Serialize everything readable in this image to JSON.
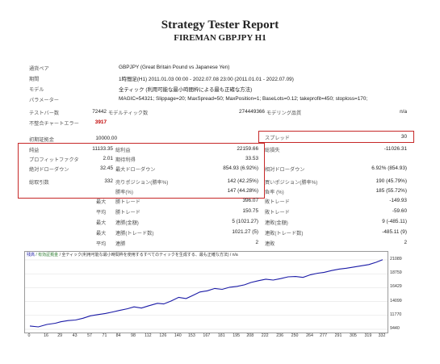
{
  "header": {
    "title": "Strategy Tester Report",
    "subtitle": "FIREMAN GBPJPY H1"
  },
  "settings": {
    "symbol_label": "通貨ペア",
    "symbol_value": "GBPJPY (Great Britain Pound vs Japanese Yen)",
    "period_label": "期間",
    "period_value": "1時間足(H1) 2011.01.03 00:00 - 2022.07.08 23:00 (2011.01.01 - 2022.07.09)",
    "model_label": "モデル",
    "model_value": "全ティック (利用可能な最小時間枠による最も正確な方法)",
    "params_label": "パラメーター",
    "params_value": "MAGIC=54321; Slippage=20; MaxSpread=50; MaxPosition=1; BaseLots=0.12; takeprofit=450; stoploss=170;"
  },
  "stats": {
    "bars_label": "テストバー数",
    "bars_value": "72442",
    "ticks_label": "モデルティック数",
    "ticks_value": "274449366",
    "quality_label": "モデリング品質",
    "quality_value": "n/a",
    "mismatch_label": "不整合チャートエラー",
    "mismatch_value": "3917",
    "deposit_label": "初期証拠金",
    "deposit_value": "10000.00",
    "spread_label": "スプレッド",
    "spread_value": "30",
    "net_label": "純益",
    "net_value": "11133.35",
    "gross_profit_label": "総利益",
    "gross_profit_value": "22159.66",
    "gross_loss_label": "総損失",
    "gross_loss_value": "-11026.31",
    "pf_label": "プロフィットファクタ",
    "pf_value": "2.01",
    "payoff_label": "期待利得",
    "payoff_value": "33.53",
    "abs_dd_label": "絶対ドローダウン",
    "abs_dd_value": "32.45",
    "max_dd_label": "最大ドローダウン",
    "max_dd_value": "854.93 (6.92%)",
    "rel_dd_label": "相対ドローダウン",
    "rel_dd_value": "6.92% (854.93)",
    "total_trades_label": "総取引数",
    "total_trades_value": "332",
    "short_label": "売りポジション(勝率%)",
    "short_value": "142 (42.25%)",
    "long_label": "買いポジション(勝率%)",
    "long_value": "190 (45.79%)",
    "win_label": "勝率(%)",
    "win_value": "147 (44.28%)",
    "loss_label": "負率 (%)",
    "loss_value": "185 (55.72%)",
    "largest_prefix": "最大",
    "average_prefix": "平均",
    "largest_win_label": "勝トレード",
    "largest_win_value": "396.07",
    "largest_loss_label": "敗トレード",
    "largest_loss_value": "-149.93",
    "avg_win_label": "勝トレード",
    "avg_win_value": "150.75",
    "avg_loss_label": "敗トレード",
    "avg_loss_value": "-59.60",
    "max_cons_wins_label": "連勝(金額)",
    "max_cons_wins_value": "5 (1021.27)",
    "max_cons_losses_label": "連敗(金額)",
    "max_cons_losses_value": "9 (-485.11)",
    "max_cons_profit_label": "連勝(トレード数)",
    "max_cons_profit_value": "1021.27 (5)",
    "max_cons_loss_label": "連敗(トレード数)",
    "max_cons_loss_value": "-485.11 (9)",
    "avg_cons_wins_label": "連勝",
    "avg_cons_wins_value": "2",
    "avg_cons_losses_label": "連敗",
    "avg_cons_losses_value": "2"
  },
  "chart_legend": {
    "balance": "残高",
    "equity": "/ 有効証拠金",
    "rest": "/ 全ティック(利用可能な最小時間枠を使用するすべてのティックを生成する、最も正確な方法) / n/a"
  },
  "chart_data": {
    "type": "line",
    "title": "",
    "xlabel": "",
    "ylabel": "",
    "x_ticks": [
      0,
      16,
      29,
      43,
      57,
      71,
      84,
      98,
      112,
      126,
      140,
      153,
      167,
      181,
      195,
      208,
      222,
      236,
      250,
      264,
      277,
      291,
      305,
      319,
      332
    ],
    "y_ticks": [
      9440,
      11770,
      14099,
      16429,
      18759,
      21089
    ],
    "xlim": [
      0,
      332
    ],
    "ylim": [
      9440,
      21089
    ],
    "series": [
      {
        "color": "#1a1aa6",
        "x": [
          0,
          8,
          16,
          24,
          29,
          36,
          43,
          50,
          57,
          64,
          71,
          78,
          84,
          92,
          98,
          105,
          112,
          120,
          126,
          133,
          140,
          147,
          153,
          160,
          167,
          174,
          181,
          188,
          195,
          202,
          208,
          215,
          222,
          229,
          236,
          243,
          250,
          257,
          264,
          271,
          277,
          284,
          291,
          298,
          305,
          312,
          319,
          326,
          332
        ],
        "y": [
          10000,
          9850,
          10250,
          10450,
          10700,
          10900,
          11000,
          11300,
          11700,
          11900,
          12100,
          12350,
          12600,
          12900,
          13200,
          13000,
          13400,
          13800,
          13700,
          14200,
          14800,
          14600,
          15100,
          15700,
          15900,
          16300,
          16150,
          16500,
          16650,
          16900,
          17300,
          17600,
          17850,
          17700,
          17950,
          18250,
          18300,
          18150,
          18600,
          18850,
          19000,
          19300,
          19550,
          19700,
          19900,
          20100,
          20300,
          20700,
          21133
        ]
      }
    ]
  }
}
